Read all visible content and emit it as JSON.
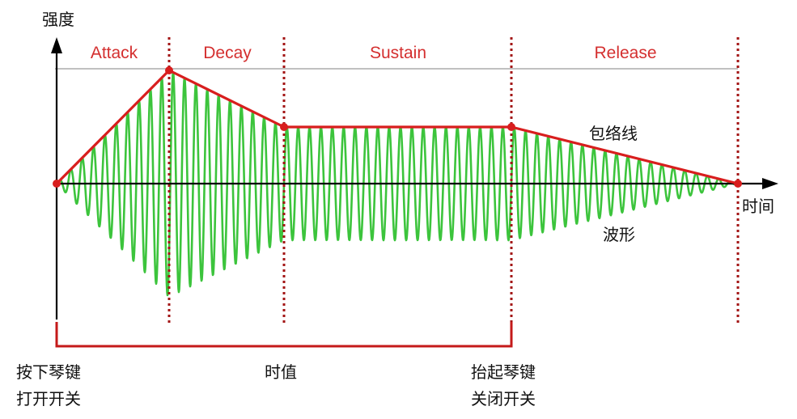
{
  "axes": {
    "y_label": "强度",
    "x_label": "时间"
  },
  "phases": [
    {
      "id": "attack",
      "label": "Attack"
    },
    {
      "id": "decay",
      "label": "Decay"
    },
    {
      "id": "sustain",
      "label": "Sustain"
    },
    {
      "id": "release",
      "label": "Release"
    }
  ],
  "annotations": {
    "envelope": "包络线",
    "waveform": "波形",
    "duration": "时值"
  },
  "key_events": {
    "press_line1": "按下琴键",
    "press_line2": "打开开关",
    "release_line1": "抬起琴键",
    "release_line2": "关闭开关"
  },
  "colors": {
    "envelope": "#d81e1e",
    "waveform": "#3cc43c",
    "phase_divider": "#a31515",
    "phase_label": "#d42f2f",
    "axis": "#000000",
    "reference_line": "#9a9a9a"
  }
}
